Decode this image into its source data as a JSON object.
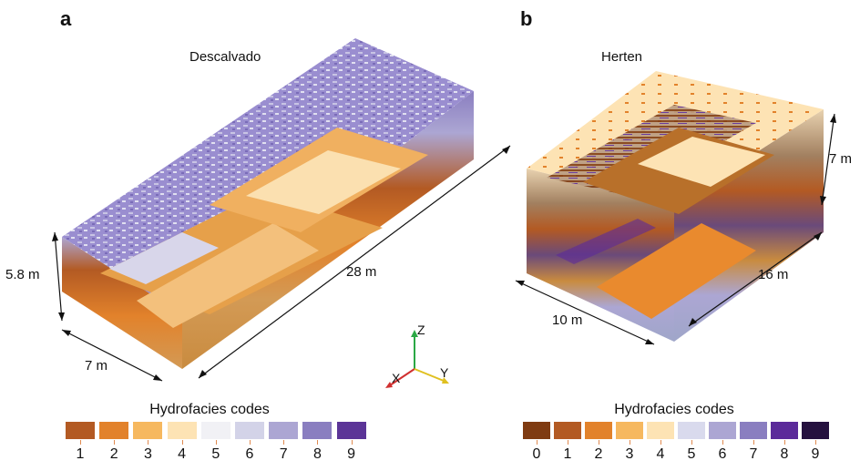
{
  "panel_a": {
    "letter": "a",
    "title": "Descalvado",
    "dim_height": "5.8 m",
    "dim_width": "7 m",
    "dim_length": "28 m",
    "legend_title": "Hydrofacies codes",
    "legend_codes": [
      "1",
      "2",
      "3",
      "4",
      "5",
      "6",
      "7",
      "8",
      "9"
    ],
    "legend_colors": [
      "#b35a23",
      "#e2822b",
      "#f6b85f",
      "#fde3b4",
      "#f1f1f5",
      "#d3d3e8",
      "#aca6d3",
      "#8a7ec0",
      "#5b3497"
    ]
  },
  "panel_b": {
    "letter": "b",
    "title": "Herten",
    "dim_height": "7 m",
    "dim_width": "10 m",
    "dim_length": "16 m",
    "legend_title": "Hydrofacies codes",
    "legend_codes": [
      "0",
      "1",
      "2",
      "3",
      "4",
      "5",
      "6",
      "7",
      "8",
      "9"
    ],
    "legend_colors": [
      "#7f3b12",
      "#b35a23",
      "#e2822b",
      "#f6b85f",
      "#fde3b4",
      "#d9daed",
      "#aca6d3",
      "#8a7ec0",
      "#5b2a9a",
      "#25113f"
    ]
  },
  "axes": {
    "z_label": "Z",
    "x_label": "X",
    "y_label": "Y",
    "z_color": "#2aa845",
    "x_color": "#d03030",
    "y_color": "#e0c020"
  }
}
